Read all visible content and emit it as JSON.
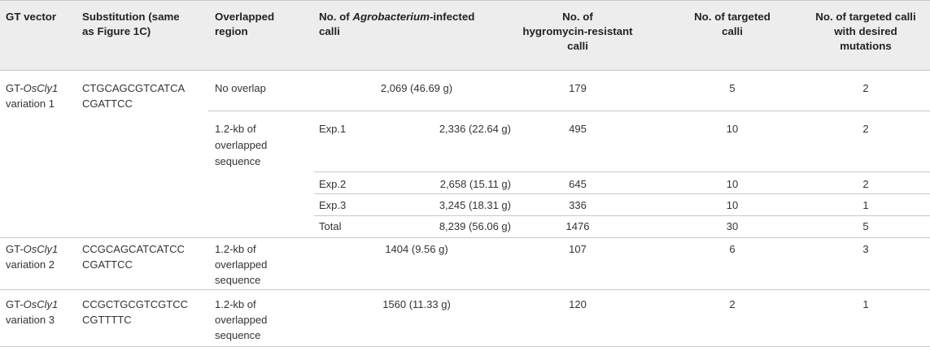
{
  "headers": {
    "gt_vector": "GT vector",
    "substitution": [
      "Substitution (same",
      "as Figure 1C)"
    ],
    "overlapped": [
      "Overlapped",
      "region"
    ],
    "infected": {
      "prefix": "No. of ",
      "italic": "Agrobacterium",
      "suffix": "-infected",
      "line2": "calli"
    },
    "hygromycin": [
      "No. of",
      "hygromycin-resistant",
      "calli"
    ],
    "targeted": [
      "No. of targeted",
      "calli"
    ],
    "desired": [
      "No. of targeted calli",
      "with desired",
      "mutations"
    ]
  },
  "groups": [
    {
      "vector": {
        "prefix": "GT-",
        "italic": "OsCly1",
        "line2": "variation 1"
      },
      "substitution": [
        "CTGCAGCGTCATCA",
        "CGATTCC"
      ],
      "rows": [
        {
          "region": [
            "No overlap"
          ],
          "exp": "",
          "infected": "2,069 (46.69 g)",
          "hygromycin": "179",
          "targeted": "5",
          "desired": "2"
        },
        {
          "region": [
            "1.2-kb of",
            "overlapped",
            "sequence"
          ],
          "exp": "Exp.1",
          "infected": "2,336 (22.64 g)",
          "hygromycin": "495",
          "targeted": "10",
          "desired": "2"
        },
        {
          "region": [],
          "exp": "Exp.2",
          "infected": "2,658 (15.11 g)",
          "hygromycin": "645",
          "targeted": "10",
          "desired": "2"
        },
        {
          "region": [],
          "exp": "Exp.3",
          "infected": "3,245 (18.31 g)",
          "hygromycin": "336",
          "targeted": "10",
          "desired": "1"
        },
        {
          "region": [],
          "exp": "Total",
          "infected": "8,239 (56.06 g)",
          "hygromycin": "1476",
          "targeted": "30",
          "desired": "5"
        }
      ]
    },
    {
      "vector": {
        "prefix": "GT-",
        "italic": "OsCly1",
        "line2": "variation 2"
      },
      "substitution": [
        "CCGCAGCATCATCC",
        "CGATTCC"
      ],
      "rows": [
        {
          "region": [
            "1.2-kb of",
            "overlapped",
            "sequence"
          ],
          "exp": "",
          "infected": "1404 (9.56 g)",
          "hygromycin": "107",
          "targeted": "6",
          "desired": "3"
        }
      ]
    },
    {
      "vector": {
        "prefix": "GT-",
        "italic": "OsCly1",
        "line2": "variation 3"
      },
      "substitution": [
        "CCGCTGCGTCGTCC",
        "CGTTTTC"
      ],
      "rows": [
        {
          "region": [
            "1.2-kb of",
            "overlapped",
            "sequence"
          ],
          "exp": "",
          "infected": "1560 (11.33 g)",
          "hygromycin": "120",
          "targeted": "2",
          "desired": "1"
        }
      ]
    }
  ]
}
